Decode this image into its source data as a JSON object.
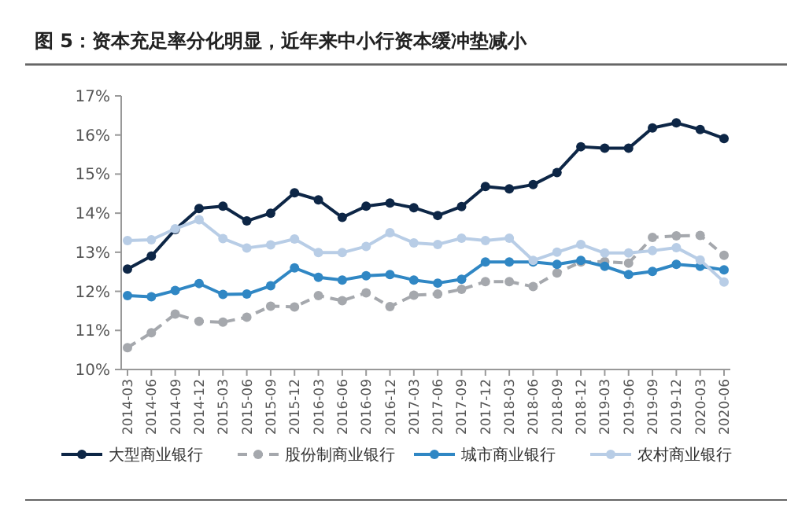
{
  "chart_data": {
    "type": "line",
    "title": "图 5：资本充足率分化明显，近年来中小行资本缓冲垫减小",
    "categories": [
      "2014-03",
      "2014-06",
      "2014-09",
      "2014-12",
      "2015-03",
      "2015-06",
      "2015-09",
      "2015-12",
      "2016-03",
      "2016-06",
      "2016-09",
      "2016-12",
      "2017-03",
      "2017-06",
      "2017-09",
      "2017-12",
      "2018-03",
      "2018-06",
      "2018-09",
      "2018-12",
      "2019-03",
      "2019-06",
      "2019-09",
      "2019-12",
      "2020-03",
      "2020-06"
    ],
    "series": [
      {
        "name": "大型商业银行",
        "color": "#0d2646",
        "line_style": "solid",
        "values": [
          12.57,
          12.9,
          13.58,
          14.12,
          14.18,
          13.8,
          14.0,
          14.52,
          14.34,
          13.89,
          14.18,
          14.26,
          14.14,
          13.94,
          14.17,
          14.68,
          14.62,
          14.73,
          15.04,
          15.7,
          15.66,
          15.66,
          16.18,
          16.31,
          16.14,
          15.91
        ]
      },
      {
        "name": "股份制商业银行",
        "color": "#a5a8ad",
        "line_style": "dashed",
        "values": [
          10.56,
          10.94,
          11.42,
          11.23,
          11.21,
          11.34,
          11.62,
          11.6,
          11.89,
          11.76,
          11.96,
          11.61,
          11.9,
          11.93,
          12.05,
          12.25,
          12.25,
          12.12,
          12.47,
          12.75,
          12.76,
          12.72,
          13.38,
          13.42,
          13.43,
          12.92
        ]
      },
      {
        "name": "城市商业银行",
        "color": "#3087c4",
        "line_style": "solid",
        "values": [
          11.89,
          11.86,
          12.02,
          12.2,
          11.92,
          11.93,
          12.14,
          12.6,
          12.36,
          12.29,
          12.4,
          12.43,
          12.29,
          12.21,
          12.31,
          12.75,
          12.75,
          12.75,
          12.69,
          12.79,
          12.64,
          12.43,
          12.51,
          12.69,
          12.64,
          12.55
        ]
      },
      {
        "name": "农村商业银行",
        "color": "#b8cde6",
        "line_style": "solid",
        "values": [
          13.3,
          13.32,
          13.6,
          13.83,
          13.35,
          13.11,
          13.19,
          13.34,
          12.99,
          12.99,
          13.15,
          13.5,
          13.24,
          13.2,
          13.36,
          13.3,
          13.36,
          12.79,
          13.0,
          13.2,
          12.98,
          12.98,
          13.04,
          13.12,
          12.8,
          12.24
        ]
      }
    ],
    "ylim": [
      10,
      17
    ],
    "yticks": [
      {
        "value": 10,
        "label": "10%"
      },
      {
        "value": 11,
        "label": "11%"
      },
      {
        "value": 12,
        "label": "12%"
      },
      {
        "value": 13,
        "label": "13%"
      },
      {
        "value": 14,
        "label": "14%"
      },
      {
        "value": 15,
        "label": "15%"
      },
      {
        "value": 16,
        "label": "16%"
      },
      {
        "value": 17,
        "label": "17%"
      }
    ],
    "grid": false,
    "legend": "bottom",
    "marker": "circle"
  }
}
